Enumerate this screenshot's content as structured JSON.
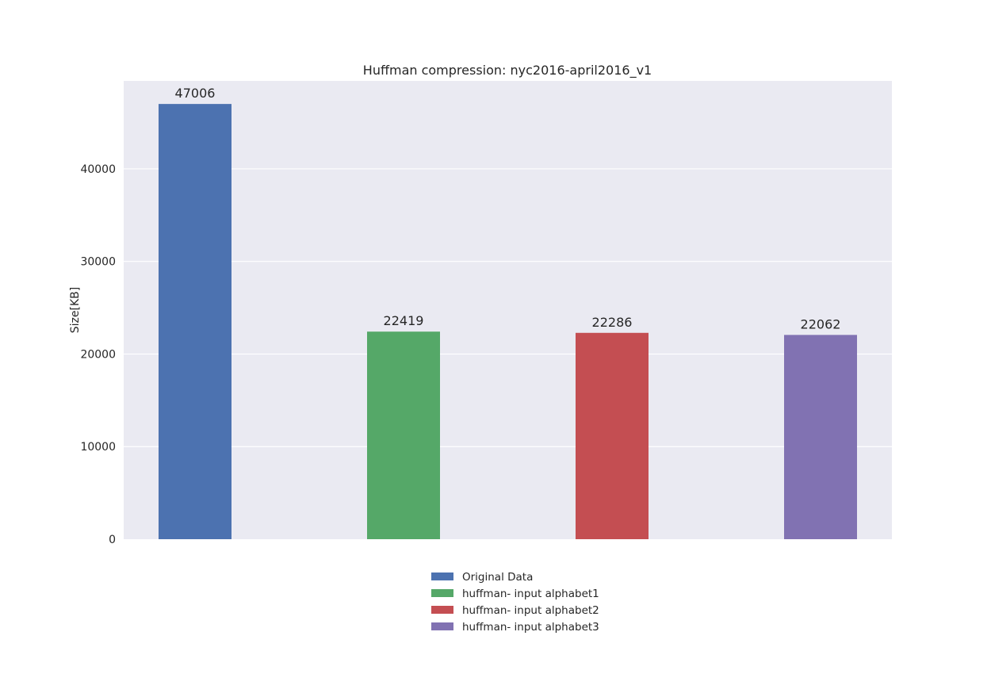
{
  "chart_data": {
    "type": "bar",
    "title": "Huffman compression: nyc2016-april2016_v1",
    "xlabel": "",
    "ylabel": "Size[KB]",
    "ylim": [
      0,
      49500
    ],
    "yticks": [
      0,
      10000,
      20000,
      30000,
      40000
    ],
    "grid": true,
    "legend_position": "bottom-center",
    "series": [
      {
        "name": "Original Data",
        "value": 47006,
        "color": "#4c72b0"
      },
      {
        "name": "huffman- input alphabet1",
        "value": 22419,
        "color": "#55a868"
      },
      {
        "name": "huffman- input alphabet2",
        "value": 22286,
        "color": "#c44e52"
      },
      {
        "name": "huffman- input alphabet3",
        "value": 22062,
        "color": "#8172b2"
      }
    ]
  }
}
